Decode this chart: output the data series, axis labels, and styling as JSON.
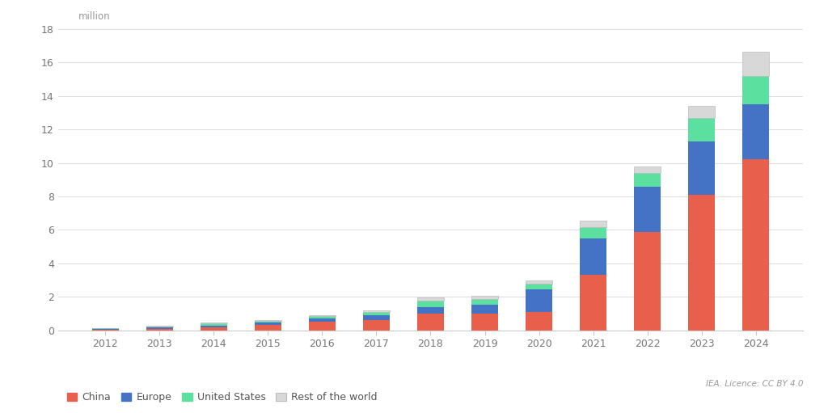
{
  "years": [
    2012,
    2013,
    2014,
    2015,
    2016,
    2017,
    2018,
    2019,
    2020,
    2021,
    2022,
    2023,
    2024
  ],
  "china": [
    0.05,
    0.1,
    0.2,
    0.33,
    0.5,
    0.6,
    1.0,
    1.0,
    1.1,
    3.3,
    5.9,
    8.1,
    10.2
  ],
  "europe": [
    0.02,
    0.07,
    0.1,
    0.14,
    0.2,
    0.3,
    0.4,
    0.55,
    1.35,
    2.2,
    2.7,
    3.2,
    3.3
  ],
  "united_states": [
    0.05,
    0.08,
    0.12,
    0.11,
    0.16,
    0.2,
    0.36,
    0.33,
    0.33,
    0.65,
    0.8,
    1.4,
    1.7
  ],
  "rest_of_world": [
    0.01,
    0.02,
    0.03,
    0.04,
    0.07,
    0.1,
    0.2,
    0.2,
    0.22,
    0.4,
    0.4,
    0.7,
    1.45
  ],
  "china_color": "#E8604C",
  "europe_color": "#4472C4",
  "us_color": "#5BE0A0",
  "row_color": "#D8D8D8",
  "bg_color": "#FFFFFF",
  "plot_area_color": "#FFFFFF",
  "grid_color": "#E0E0E0",
  "ylim": [
    0,
    18
  ],
  "yticks": [
    0,
    2,
    4,
    6,
    8,
    10,
    12,
    14,
    16,
    18
  ],
  "ylabel": "million",
  "legend_labels": [
    "China",
    "Europe",
    "United States",
    "Rest of the world"
  ],
  "source_text": "IEA. Licence: CC BY 4.0",
  "bar_width": 0.5
}
